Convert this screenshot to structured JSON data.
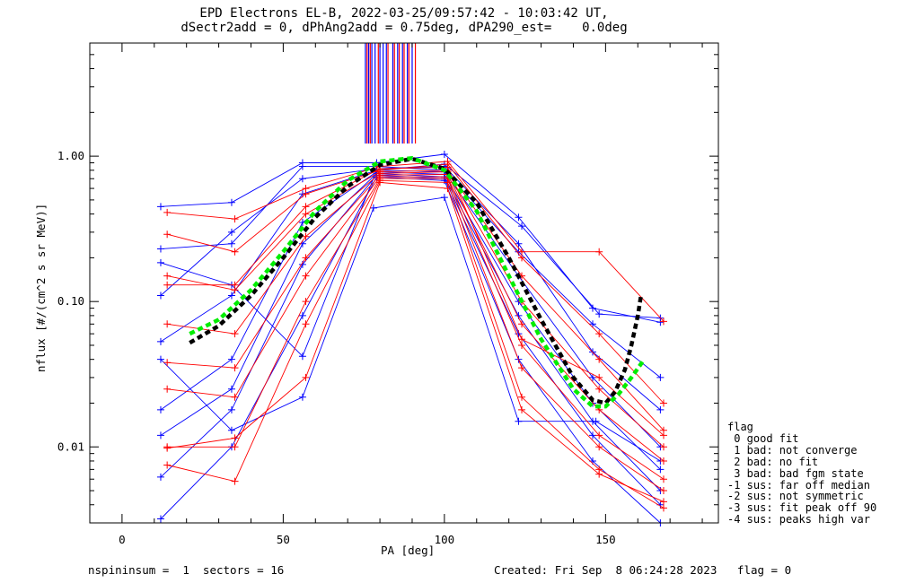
{
  "chart_data": {
    "type": "line",
    "title": "EPD Electrons EL-B, 2022-03-25/09:57:42 - 10:03:42 UT,",
    "subtitle": "dSectr2add = 0, dPhAng2add = 0.75deg, dPA290_est=    0.0deg",
    "xlabel": "PA [deg]",
    "ylabel": "nflux [#/(cm^2 s sr MeV)]",
    "xlim": [
      -10,
      185
    ],
    "ylim": [
      0.003,
      6.0
    ],
    "yscale": "log",
    "xticks": [
      0,
      50,
      100,
      150
    ],
    "yticks": [
      0.01,
      0.1,
      1.0
    ],
    "ytick_labels": [
      "0.01",
      "0.10",
      "1.00"
    ],
    "grid": false,
    "series": [
      {
        "color": "#0000ff",
        "x": [
          12,
          34,
          56,
          79,
          100,
          123,
          146,
          167
        ],
        "y": [
          0.45,
          0.48,
          0.9,
          0.9,
          1.03,
          0.38,
          0.09,
          0.072
        ]
      },
      {
        "color": "#0000ff",
        "x": [
          12,
          34,
          56,
          79,
          100,
          123,
          146,
          167
        ],
        "y": [
          0.23,
          0.25,
          0.85,
          0.85,
          0.8,
          0.22,
          0.07,
          0.03
        ]
      },
      {
        "color": "#0000ff",
        "x": [
          12,
          34,
          56,
          79,
          100,
          123,
          146,
          167
        ],
        "y": [
          0.11,
          0.3,
          0.7,
          0.82,
          0.85,
          0.25,
          0.045,
          0.018
        ]
      },
      {
        "color": "#0000ff",
        "x": [
          12,
          34,
          56,
          79,
          100,
          123,
          146,
          167
        ],
        "y": [
          0.053,
          0.11,
          0.55,
          0.8,
          0.78,
          0.15,
          0.03,
          0.01
        ]
      },
      {
        "color": "#0000ff",
        "x": [
          12,
          34,
          56,
          79,
          100,
          123,
          146,
          167
        ],
        "y": [
          0.018,
          0.04,
          0.35,
          0.78,
          0.75,
          0.1,
          0.02,
          0.007
        ]
      },
      {
        "color": "#0000ff",
        "x": [
          12,
          34,
          56,
          79,
          100,
          123,
          146,
          167
        ],
        "y": [
          0.012,
          0.025,
          0.25,
          0.76,
          0.72,
          0.08,
          0.015,
          0.005
        ]
      },
      {
        "color": "#0000ff",
        "x": [
          12,
          34,
          56,
          79,
          100,
          123,
          146,
          167
        ],
        "y": [
          0.0062,
          0.018,
          0.18,
          0.74,
          0.7,
          0.06,
          0.012,
          0.004
        ]
      },
      {
        "color": "#0000ff",
        "x": [
          12,
          34,
          56,
          79,
          100,
          123,
          146,
          167
        ],
        "y": [
          0.0032,
          0.01,
          0.08,
          0.72,
          0.68,
          0.04,
          0.008,
          0.003
        ]
      },
      {
        "color": "#0000ff",
        "x": [
          12,
          34,
          56,
          78,
          100,
          123,
          147,
          167
        ],
        "y": [
          0.04,
          0.013,
          0.022,
          0.44,
          0.52,
          0.015,
          0.015,
          0.008
        ]
      },
      {
        "color": "#0000ff",
        "x": [
          12,
          34,
          56,
          79,
          100,
          124,
          148,
          167
        ],
        "y": [
          0.185,
          0.13,
          0.042,
          0.8,
          0.88,
          0.33,
          0.082,
          0.077
        ]
      },
      {
        "color": "#ff0000",
        "x": [
          14,
          35,
          57,
          80,
          101,
          124,
          148,
          168
        ],
        "y": [
          0.41,
          0.37,
          0.6,
          0.85,
          0.92,
          0.22,
          0.22,
          0.073
        ]
      },
      {
        "color": "#ff0000",
        "x": [
          14,
          35,
          57,
          80,
          101,
          124,
          148,
          168
        ],
        "y": [
          0.29,
          0.22,
          0.55,
          0.8,
          0.88,
          0.2,
          0.06,
          0.02
        ]
      },
      {
        "color": "#ff0000",
        "x": [
          14,
          35,
          57,
          80,
          101,
          124,
          148,
          168
        ],
        "y": [
          0.15,
          0.12,
          0.4,
          0.78,
          0.8,
          0.15,
          0.04,
          0.013
        ]
      },
      {
        "color": "#ff0000",
        "x": [
          14,
          35,
          57,
          80,
          101,
          124,
          148,
          168
        ],
        "y": [
          0.07,
          0.06,
          0.28,
          0.76,
          0.78,
          0.1,
          0.025,
          0.01
        ]
      },
      {
        "color": "#ff0000",
        "x": [
          14,
          35,
          57,
          80,
          101,
          124,
          148,
          168
        ],
        "y": [
          0.038,
          0.035,
          0.2,
          0.74,
          0.75,
          0.07,
          0.018,
          0.008
        ]
      },
      {
        "color": "#ff0000",
        "x": [
          14,
          35,
          57,
          80,
          101,
          124,
          148,
          168
        ],
        "y": [
          0.025,
          0.022,
          0.15,
          0.72,
          0.72,
          0.05,
          0.012,
          0.006
        ]
      },
      {
        "color": "#ff0000",
        "x": [
          14,
          35,
          57,
          80,
          101,
          124,
          148,
          168
        ],
        "y": [
          0.01,
          0.01,
          0.1,
          0.7,
          0.7,
          0.035,
          0.01,
          0.005
        ]
      },
      {
        "color": "#ff0000",
        "x": [
          14,
          35,
          57,
          80,
          101,
          124,
          148,
          168
        ],
        "y": [
          0.0075,
          0.0058,
          0.07,
          0.68,
          0.66,
          0.022,
          0.007,
          0.0038
        ]
      },
      {
        "color": "#ff0000",
        "x": [
          14,
          35,
          57,
          80,
          101,
          124,
          148,
          168
        ],
        "y": [
          0.13,
          0.13,
          0.45,
          0.82,
          0.84,
          0.055,
          0.03,
          0.012
        ]
      },
      {
        "color": "#ff0000",
        "x": [
          14,
          35,
          57,
          80,
          101,
          124,
          148,
          168
        ],
        "y": [
          0.0098,
          0.0115,
          0.03,
          0.66,
          0.6,
          0.018,
          0.0065,
          0.0042
        ]
      }
    ],
    "fit_curves": [
      {
        "color": "#000000",
        "style": "dashed",
        "x": [
          21,
          30,
          40,
          50,
          60,
          70,
          80,
          90,
          100,
          110,
          120,
          130,
          140,
          146,
          150,
          153,
          156,
          158,
          160,
          161
        ],
        "y": [
          0.052,
          0.068,
          0.11,
          0.2,
          0.38,
          0.62,
          0.87,
          0.96,
          0.82,
          0.48,
          0.2,
          0.075,
          0.03,
          0.021,
          0.02,
          0.024,
          0.034,
          0.05,
          0.08,
          0.11
        ]
      },
      {
        "color": "#00ee00",
        "style": "dashed",
        "x": [
          21,
          30,
          40,
          50,
          60,
          70,
          80,
          90,
          100,
          110,
          120,
          130,
          140,
          146,
          150,
          154,
          158,
          162
        ],
        "y": [
          0.06,
          0.075,
          0.12,
          0.22,
          0.42,
          0.68,
          0.92,
          0.97,
          0.8,
          0.42,
          0.15,
          0.055,
          0.025,
          0.019,
          0.019,
          0.023,
          0.03,
          0.04
        ]
      }
    ],
    "vertical_marks": [
      {
        "color": "#0000ff",
        "x": [
          75.5,
          76.5,
          77.5,
          78.5,
          80,
          81,
          82,
          84,
          85.5,
          87,
          88.5,
          90
        ]
      },
      {
        "color": "#ff0000",
        "x": [
          76,
          77,
          79.5,
          82.5,
          84.5,
          86,
          87.5,
          89,
          91
        ]
      }
    ],
    "legend_title": "flag",
    "legend": [
      " 0 good fit",
      " 1 bad: not converge",
      " 2 bad: no fit",
      " 3 bad: bad fgm state",
      "-1 sus: far off median",
      "-2 sus: not symmetric",
      "-3 sus: fit peak off 90",
      "-4 sus: peaks high var"
    ],
    "legend_placement": "right"
  },
  "footer": {
    "left": "nspininsum =  1  sectors = 16",
    "right": "Created: Fri Sep  8 06:24:28 2023   flag = 0"
  }
}
